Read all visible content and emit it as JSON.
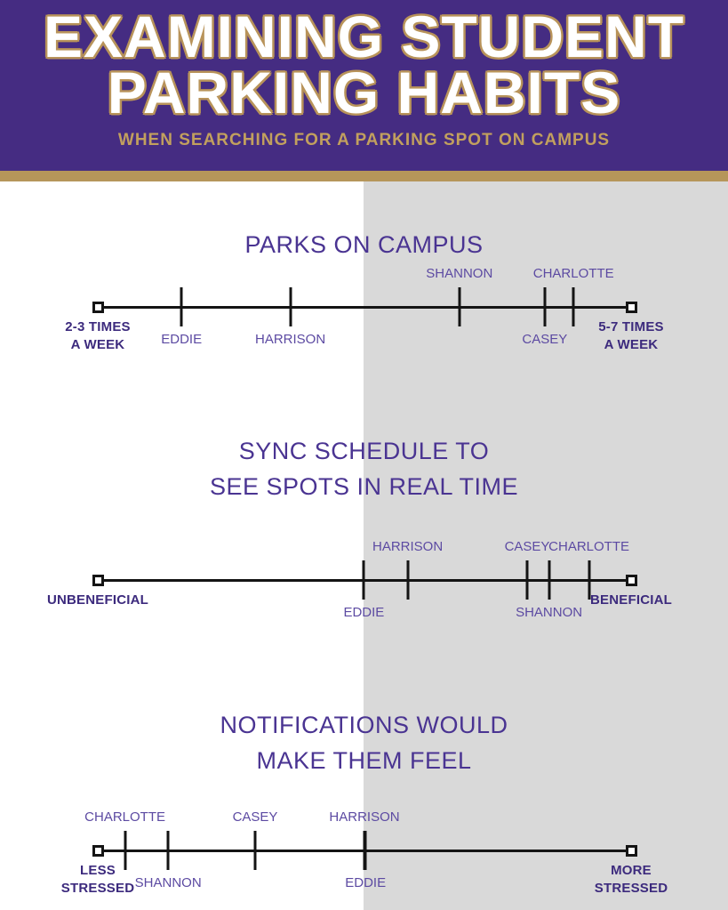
{
  "header": {
    "title_line1": "EXAMINING STUDENT",
    "title_line2": "PARKING HABITS",
    "subtitle": "WHEN SEARCHING FOR A PARKING SPOT ON CAMPUS"
  },
  "colors": {
    "header_bg": "#452c82",
    "gold": "#b6965a",
    "title_outline": "#b8935a",
    "subtitle_color": "#c2a05e",
    "gray_panel": "#d9d9d9",
    "chart_title": "#4a3492",
    "name_label": "#5c4aa2",
    "endpoint_label": "#3c2a7d",
    "line": "#141414"
  },
  "chart_data": [
    {
      "type": "number-line",
      "title_lines": [
        "PARKS ON CAMPUS"
      ],
      "left_label_lines": [
        "2-3 TIMES",
        "A WEEK"
      ],
      "right_label_lines": [
        "5-7 TIMES",
        "A WEEK"
      ],
      "axis_range": [
        "2-3 times a week",
        "5-7 times a week"
      ],
      "points": [
        {
          "name": "EDDIE",
          "pos_pct": 15.7,
          "side": "below"
        },
        {
          "name": "HARRISON",
          "pos_pct": 36.1,
          "side": "below"
        },
        {
          "name": "SHANNON",
          "pos_pct": 67.8,
          "side": "above"
        },
        {
          "name": "CASEY",
          "pos_pct": 83.8,
          "side": "below"
        },
        {
          "name": "CHARLOTTE",
          "pos_pct": 89.2,
          "side": "above"
        }
      ]
    },
    {
      "type": "number-line",
      "title_lines": [
        "SYNC SCHEDULE TO",
        "SEE SPOTS IN REAL TIME"
      ],
      "left_label_lines": [
        "UNBENEFICIAL"
      ],
      "right_label_lines": [
        "BENEFICIAL"
      ],
      "axis_range": [
        "Unbeneficial",
        "Beneficial"
      ],
      "points": [
        {
          "name": "EDDIE",
          "pos_pct": 49.9,
          "side": "below"
        },
        {
          "name": "HARRISON",
          "pos_pct": 58.1,
          "side": "above"
        },
        {
          "name": "CASEY",
          "pos_pct": 80.5,
          "side": "above"
        },
        {
          "name": "SHANNON",
          "pos_pct": 84.6,
          "side": "below"
        },
        {
          "name": "CHARLOTTE",
          "pos_pct": 92.1,
          "side": "above"
        }
      ]
    },
    {
      "type": "number-line",
      "title_lines": [
        "NOTIFICATIONS WOULD",
        "MAKE THEM FEEL"
      ],
      "left_label_lines": [
        "LESS",
        "STRESSED"
      ],
      "right_label_lines": [
        "MORE",
        "STRESSED"
      ],
      "axis_range": [
        "Less stressed",
        "More stressed"
      ],
      "points": [
        {
          "name": "CHARLOTTE",
          "pos_pct": 5.1,
          "side": "above"
        },
        {
          "name": "SHANNON",
          "pos_pct": 13.2,
          "side": "below"
        },
        {
          "name": "CASEY",
          "pos_pct": 29.5,
          "side": "above"
        },
        {
          "name": "HARRISON",
          "pos_pct": 50.0,
          "side": "above"
        },
        {
          "name": "EDDIE",
          "pos_pct": 50.2,
          "side": "below"
        }
      ]
    }
  ]
}
